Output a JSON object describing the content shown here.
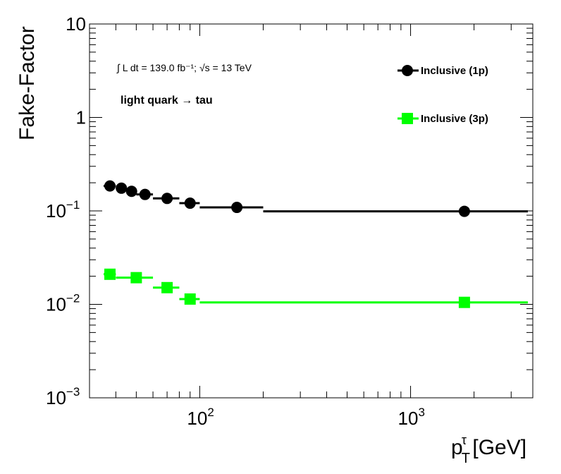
{
  "chart_data": {
    "type": "scatter",
    "title": "",
    "xlabel": "p_T^τ [GeV]",
    "xlabel_main": "p",
    "xlabel_sub": "T",
    "xlabel_sup": "τ",
    "xlabel_unit": " [GeV]",
    "ylabel": "Fake-Factor",
    "xscale": "log",
    "yscale": "log",
    "xlim": [
      30,
      3800
    ],
    "ylim": [
      0.001,
      10
    ],
    "x_tick_labels": [
      {
        "value": 100,
        "base": "10",
        "exp": "2"
      },
      {
        "value": 1000,
        "base": "10",
        "exp": "3"
      }
    ],
    "y_tick_labels": [
      {
        "value": 10,
        "text": "10",
        "base": "",
        "exp": ""
      },
      {
        "value": 1,
        "text": "1",
        "base": "",
        "exp": ""
      },
      {
        "value": 0.1,
        "text": "",
        "base": "10",
        "exp": "−1"
      },
      {
        "value": 0.01,
        "text": "",
        "base": "10",
        "exp": "−2"
      },
      {
        "value": 0.001,
        "text": "",
        "base": "10",
        "exp": "−3"
      }
    ],
    "grid": false,
    "legend_position": "top-right",
    "annotations": {
      "luminosity": "∫ L dt = 139.0 fb⁻¹;  √s = 13 TeV",
      "process": "light quark → tau"
    },
    "series": [
      {
        "name": "Inclusive (1p)",
        "color": "#000000",
        "marker": "circle",
        "points": [
          {
            "x": 37.5,
            "y": 0.185,
            "xlo": 35,
            "xhi": 40
          },
          {
            "x": 42.5,
            "y": 0.175,
            "xlo": 40,
            "xhi": 45
          },
          {
            "x": 47.5,
            "y": 0.162,
            "xlo": 45,
            "xhi": 50
          },
          {
            "x": 55,
            "y": 0.15,
            "xlo": 50,
            "xhi": 60
          },
          {
            "x": 70,
            "y": 0.136,
            "xlo": 60,
            "xhi": 80
          },
          {
            "x": 90,
            "y": 0.121,
            "xlo": 80,
            "xhi": 100
          },
          {
            "x": 150,
            "y": 0.109,
            "xlo": 100,
            "xhi": 200
          },
          {
            "x": 1800,
            "y": 0.099,
            "xlo": 200,
            "xhi": 3600
          }
        ]
      },
      {
        "name": "Inclusive (3p)",
        "color": "#00ff00",
        "marker": "square",
        "points": [
          {
            "x": 37.5,
            "y": 0.021,
            "xlo": 35,
            "xhi": 40
          },
          {
            "x": 50,
            "y": 0.0193,
            "xlo": 40,
            "xhi": 60
          },
          {
            "x": 70,
            "y": 0.0151,
            "xlo": 60,
            "xhi": 80
          },
          {
            "x": 90,
            "y": 0.0114,
            "xlo": 80,
            "xhi": 100
          },
          {
            "x": 1800,
            "y": 0.0105,
            "xlo": 100,
            "xhi": 3600
          }
        ]
      }
    ]
  }
}
